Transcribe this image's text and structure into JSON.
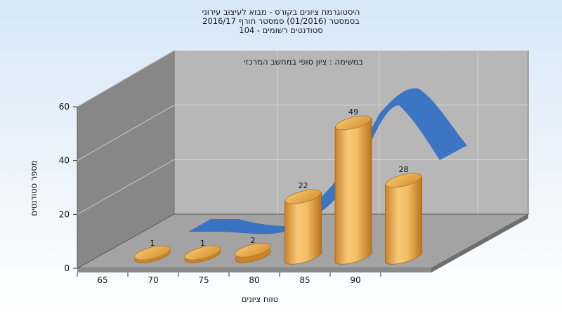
{
  "chart_data": {
    "type": "bar",
    "title_lines": [
      "היסטוגרמת ציונים בקורס - מבוא לעיצוב עירוני",
      "בסמסטר  (01/2016)  סמסטר חורף 2016/17",
      "סטודנטים רשומים - 104"
    ],
    "subtitle": "במשימה : ציון סופי במחשב המרכזי",
    "xlabel": "טווח ציונים",
    "ylabel": "מספר סטודנטים",
    "categories": [
      "65",
      "70",
      "75",
      "80",
      "85",
      "90"
    ],
    "values": [
      1,
      1,
      2,
      22,
      49,
      28
    ],
    "yticks": [
      0,
      20,
      40,
      60
    ],
    "ylim": [
      0,
      60
    ],
    "curve": "smoothed distribution ribbon behind the bars",
    "colors": {
      "bar_light": "#f7c979",
      "bar_dark": "#c9832a",
      "curve": "#3471c4",
      "back_wall": "#b7b7b7",
      "left_wall": "#878787",
      "floor": "#a3a3a3",
      "background_top": "#d7e7f7"
    },
    "grid": true
  }
}
